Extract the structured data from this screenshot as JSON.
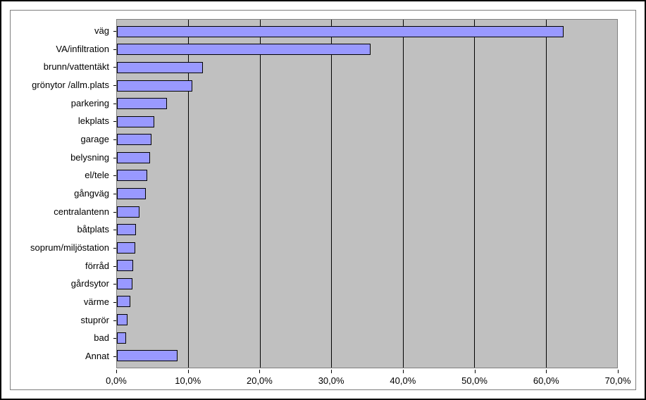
{
  "chart": {
    "type": "bar-horizontal",
    "background_color": "#c0c0c0",
    "bar_color": "#9999ff",
    "bar_border_color": "#000000",
    "gridline_color": "#000000",
    "axis_color": "#808080",
    "font_family": "Arial",
    "label_fontsize": 13,
    "tick_fontsize": 13,
    "xlim_min": 0,
    "xlim_max": 70,
    "xtick_step": 10,
    "xticks": [
      {
        "value": 0,
        "label": "0,0%"
      },
      {
        "value": 10,
        "label": "10,0%"
      },
      {
        "value": 20,
        "label": "20,0%"
      },
      {
        "value": 30,
        "label": "30,0%"
      },
      {
        "value": 40,
        "label": "40,0%"
      },
      {
        "value": 50,
        "label": "50,0%"
      },
      {
        "value": 60,
        "label": "60,0%"
      },
      {
        "value": 70,
        "label": "70,0%"
      }
    ],
    "categories": [
      {
        "label": "väg",
        "value": 62.5
      },
      {
        "label": "VA/infiltration",
        "value": 35.5
      },
      {
        "label": "brunn/vattentäkt",
        "value": 12.0
      },
      {
        "label": "grönytor /allm.plats",
        "value": 10.5
      },
      {
        "label": "parkering",
        "value": 7.0
      },
      {
        "label": "lekplats",
        "value": 5.2
      },
      {
        "label": "garage",
        "value": 4.8
      },
      {
        "label": "belysning",
        "value": 4.6
      },
      {
        "label": "el/tele",
        "value": 4.2
      },
      {
        "label": "gångväg",
        "value": 4.0
      },
      {
        "label": "centralantenn",
        "value": 3.2
      },
      {
        "label": "båtplats",
        "value": 2.7
      },
      {
        "label": "soprum/miljöstation",
        "value": 2.6
      },
      {
        "label": "förråd",
        "value": 2.3
      },
      {
        "label": "gårdsytor",
        "value": 2.2
      },
      {
        "label": "värme",
        "value": 1.9
      },
      {
        "label": "stuprör",
        "value": 1.5
      },
      {
        "label": "bad",
        "value": 1.3
      },
      {
        "label": "Annat",
        "value": 8.5
      }
    ]
  }
}
